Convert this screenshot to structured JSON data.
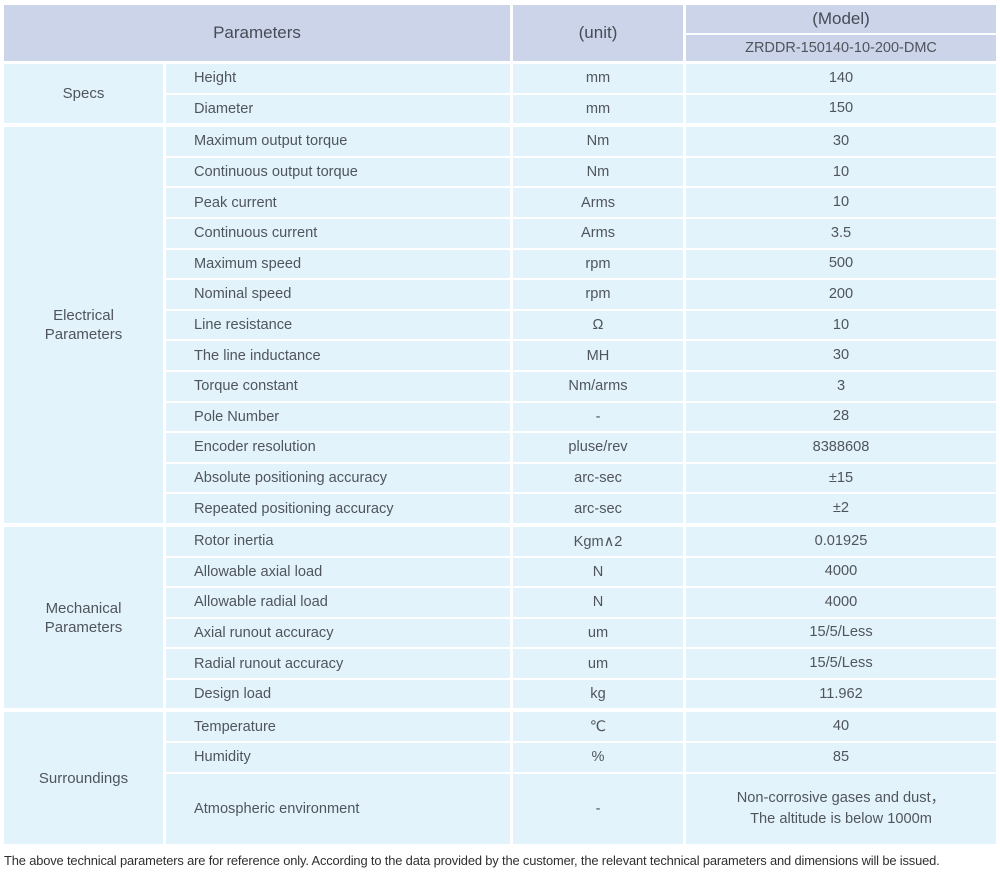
{
  "header": {
    "parameters_label": "Parameters",
    "unit_label": "(unit)",
    "model_label": "(Model)",
    "model_value": "ZRDDR-150140-10-200-DMC"
  },
  "sections": [
    {
      "category": "Specs",
      "rows": [
        {
          "param": "Height",
          "unit": "mm",
          "value": "140"
        },
        {
          "param": "Diameter",
          "unit": "mm",
          "value": "150"
        }
      ]
    },
    {
      "category": "Electrical Parameters",
      "rows": [
        {
          "param": "Maximum output torque",
          "unit": "Nm",
          "value": "30"
        },
        {
          "param": "Continuous output torque",
          "unit": "Nm",
          "value": "10"
        },
        {
          "param": "Peak current",
          "unit": "Arms",
          "value": "10"
        },
        {
          "param": "Continuous current",
          "unit": "Arms",
          "value": "3.5"
        },
        {
          "param": "Maximum speed",
          "unit": "rpm",
          "value": "500"
        },
        {
          "param": "Nominal speed",
          "unit": "rpm",
          "value": "200"
        },
        {
          "param": "Line resistance",
          "unit": "Ω",
          "value": "10"
        },
        {
          "param": "The line inductance",
          "unit": "MH",
          "value": "30"
        },
        {
          "param": "Torque constant",
          "unit": "Nm/arms",
          "value": "3"
        },
        {
          "param": "Pole Number",
          "unit": "-",
          "value": "28"
        },
        {
          "param": "Encoder resolution",
          "unit": "pluse/rev",
          "value": "8388608"
        },
        {
          "param": "Absolute positioning accuracy",
          "unit": "arc-sec",
          "value": "±15"
        },
        {
          "param": "Repeated positioning accuracy",
          "unit": "arc-sec",
          "value": "±2"
        }
      ]
    },
    {
      "category": "Mechanical Parameters",
      "rows": [
        {
          "param": "Rotor inertia",
          "unit": "Kgm∧2",
          "value": "0.01925"
        },
        {
          "param": "Allowable axial load",
          "unit": "N",
          "value": "4000"
        },
        {
          "param": "Allowable radial load",
          "unit": "N",
          "value": "4000"
        },
        {
          "param": "Axial runout accuracy",
          "unit": "um",
          "value": "15/5/Less"
        },
        {
          "param": "Radial runout accuracy",
          "unit": "um",
          "value": "15/5/Less"
        },
        {
          "param": "Design load",
          "unit": "kg",
          "value": "11.962"
        }
      ]
    },
    {
      "category": "Surroundings",
      "rows": [
        {
          "param": "Temperature",
          "unit": "℃",
          "value": "40"
        },
        {
          "param": "Humidity",
          "unit": "%",
          "value": "85"
        },
        {
          "param": "Atmospheric environment",
          "unit": "-",
          "value": "Non-corrosive gases and dust，\nThe altitude is below 1000m"
        }
      ]
    }
  ],
  "footer": {
    "note": "The above technical parameters are for reference only. According to the data provided by the customer, the relevant technical parameters and dimensions will be issued."
  },
  "colors": {
    "header_bg": "#ccd4ea",
    "cell_bg": "#e3f3fb",
    "separator": "#ffffff",
    "body_text": "#50555c",
    "footer_text": "#2f2f2f"
  }
}
